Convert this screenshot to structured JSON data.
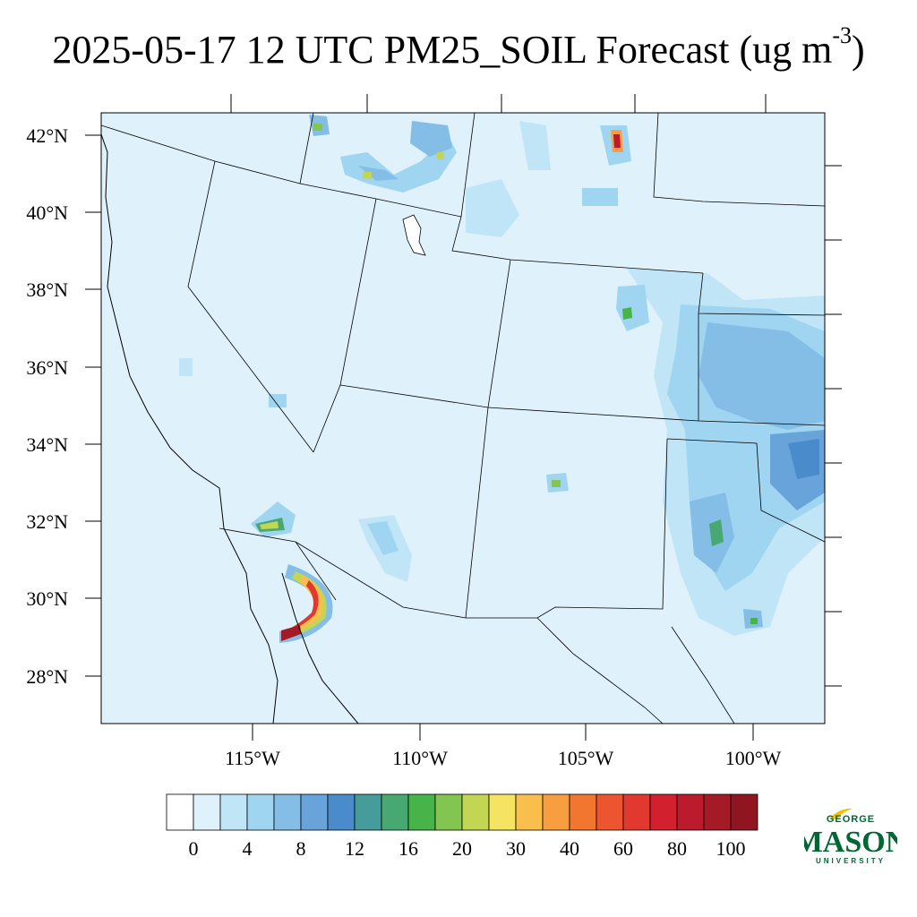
{
  "title": {
    "prefix": "2025-05-17 12 UTC PM25_SOIL Forecast (ug m",
    "exponent": "-3",
    "suffix": ")"
  },
  "axes": {
    "lat_labels": [
      "42°N",
      "40°N",
      "38°N",
      "36°N",
      "34°N",
      "32°N",
      "30°N",
      "28°N"
    ],
    "lon_labels": [
      "115°W",
      "110°W",
      "105°W",
      "100°W"
    ]
  },
  "colorbar": {
    "colors": [
      "#ffffff",
      "#dff1fb",
      "#bfe5f6",
      "#9fd5f1",
      "#84bde5",
      "#68a4da",
      "#4a8ccb",
      "#469b9b",
      "#47a872",
      "#47b44a",
      "#82c551",
      "#c2d654",
      "#f5e461",
      "#f8bf4c",
      "#f79f40",
      "#f37630",
      "#ec552f",
      "#e1392f",
      "#d2202f",
      "#bc1b2b",
      "#a51a27",
      "#8f1521"
    ],
    "labels": [
      "0",
      "4",
      "8",
      "12",
      "16",
      "20",
      "30",
      "40",
      "60",
      "80",
      "100"
    ]
  },
  "logo": {
    "line1": "GEORGE",
    "line2": "MASON",
    "line3": "UNIVERSITY",
    "accent": "#f2c200",
    "brand": "#006633"
  }
}
